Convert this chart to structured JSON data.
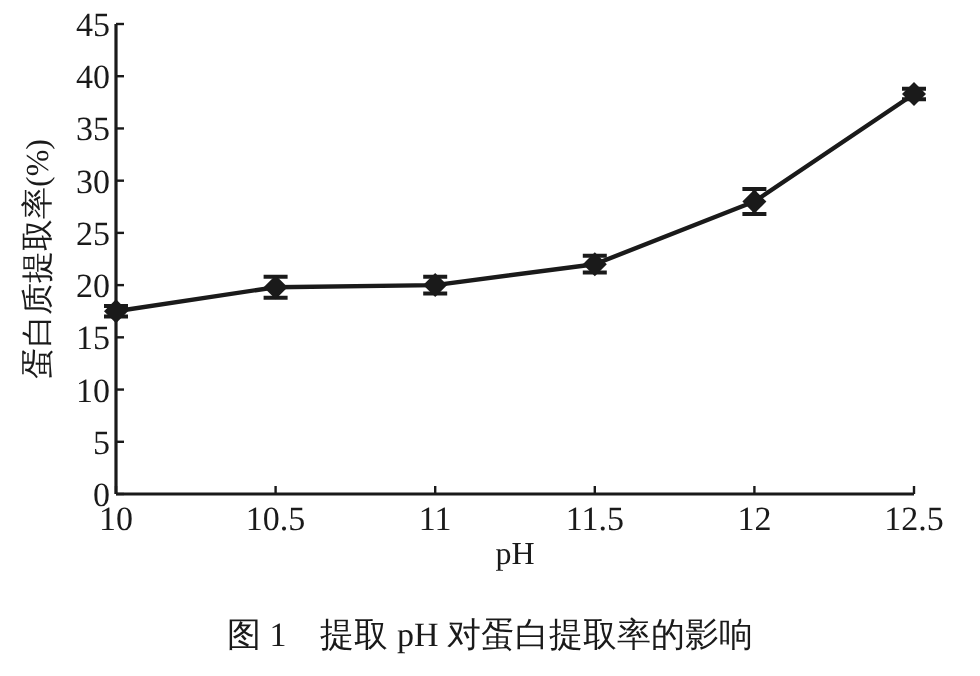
{
  "chart_data": {
    "type": "line",
    "xlabel": "pH",
    "ylabel": "蛋白质提取率(%)",
    "annotations": [
      "图 1　提取 pH 对蛋白提取率的影响"
    ],
    "x": [
      10,
      10.5,
      11,
      11.5,
      12,
      12.5
    ],
    "series": [
      {
        "color": "#1a1a1a",
        "values": [
          17.5,
          19.8,
          20,
          22,
          28,
          38.3
        ],
        "errors": [
          0.5,
          1,
          0.8,
          0.8,
          1.2,
          0.5
        ]
      }
    ],
    "xlim": [
      10,
      12.5
    ],
    "xticks": [
      10,
      10.5,
      11,
      11.5,
      12,
      12.5
    ],
    "ylim": [
      0,
      45
    ],
    "yticks": [
      0,
      5,
      10,
      15,
      20,
      25,
      30,
      35,
      40,
      45
    ],
    "marker": "diamond",
    "line_style": "solid"
  }
}
